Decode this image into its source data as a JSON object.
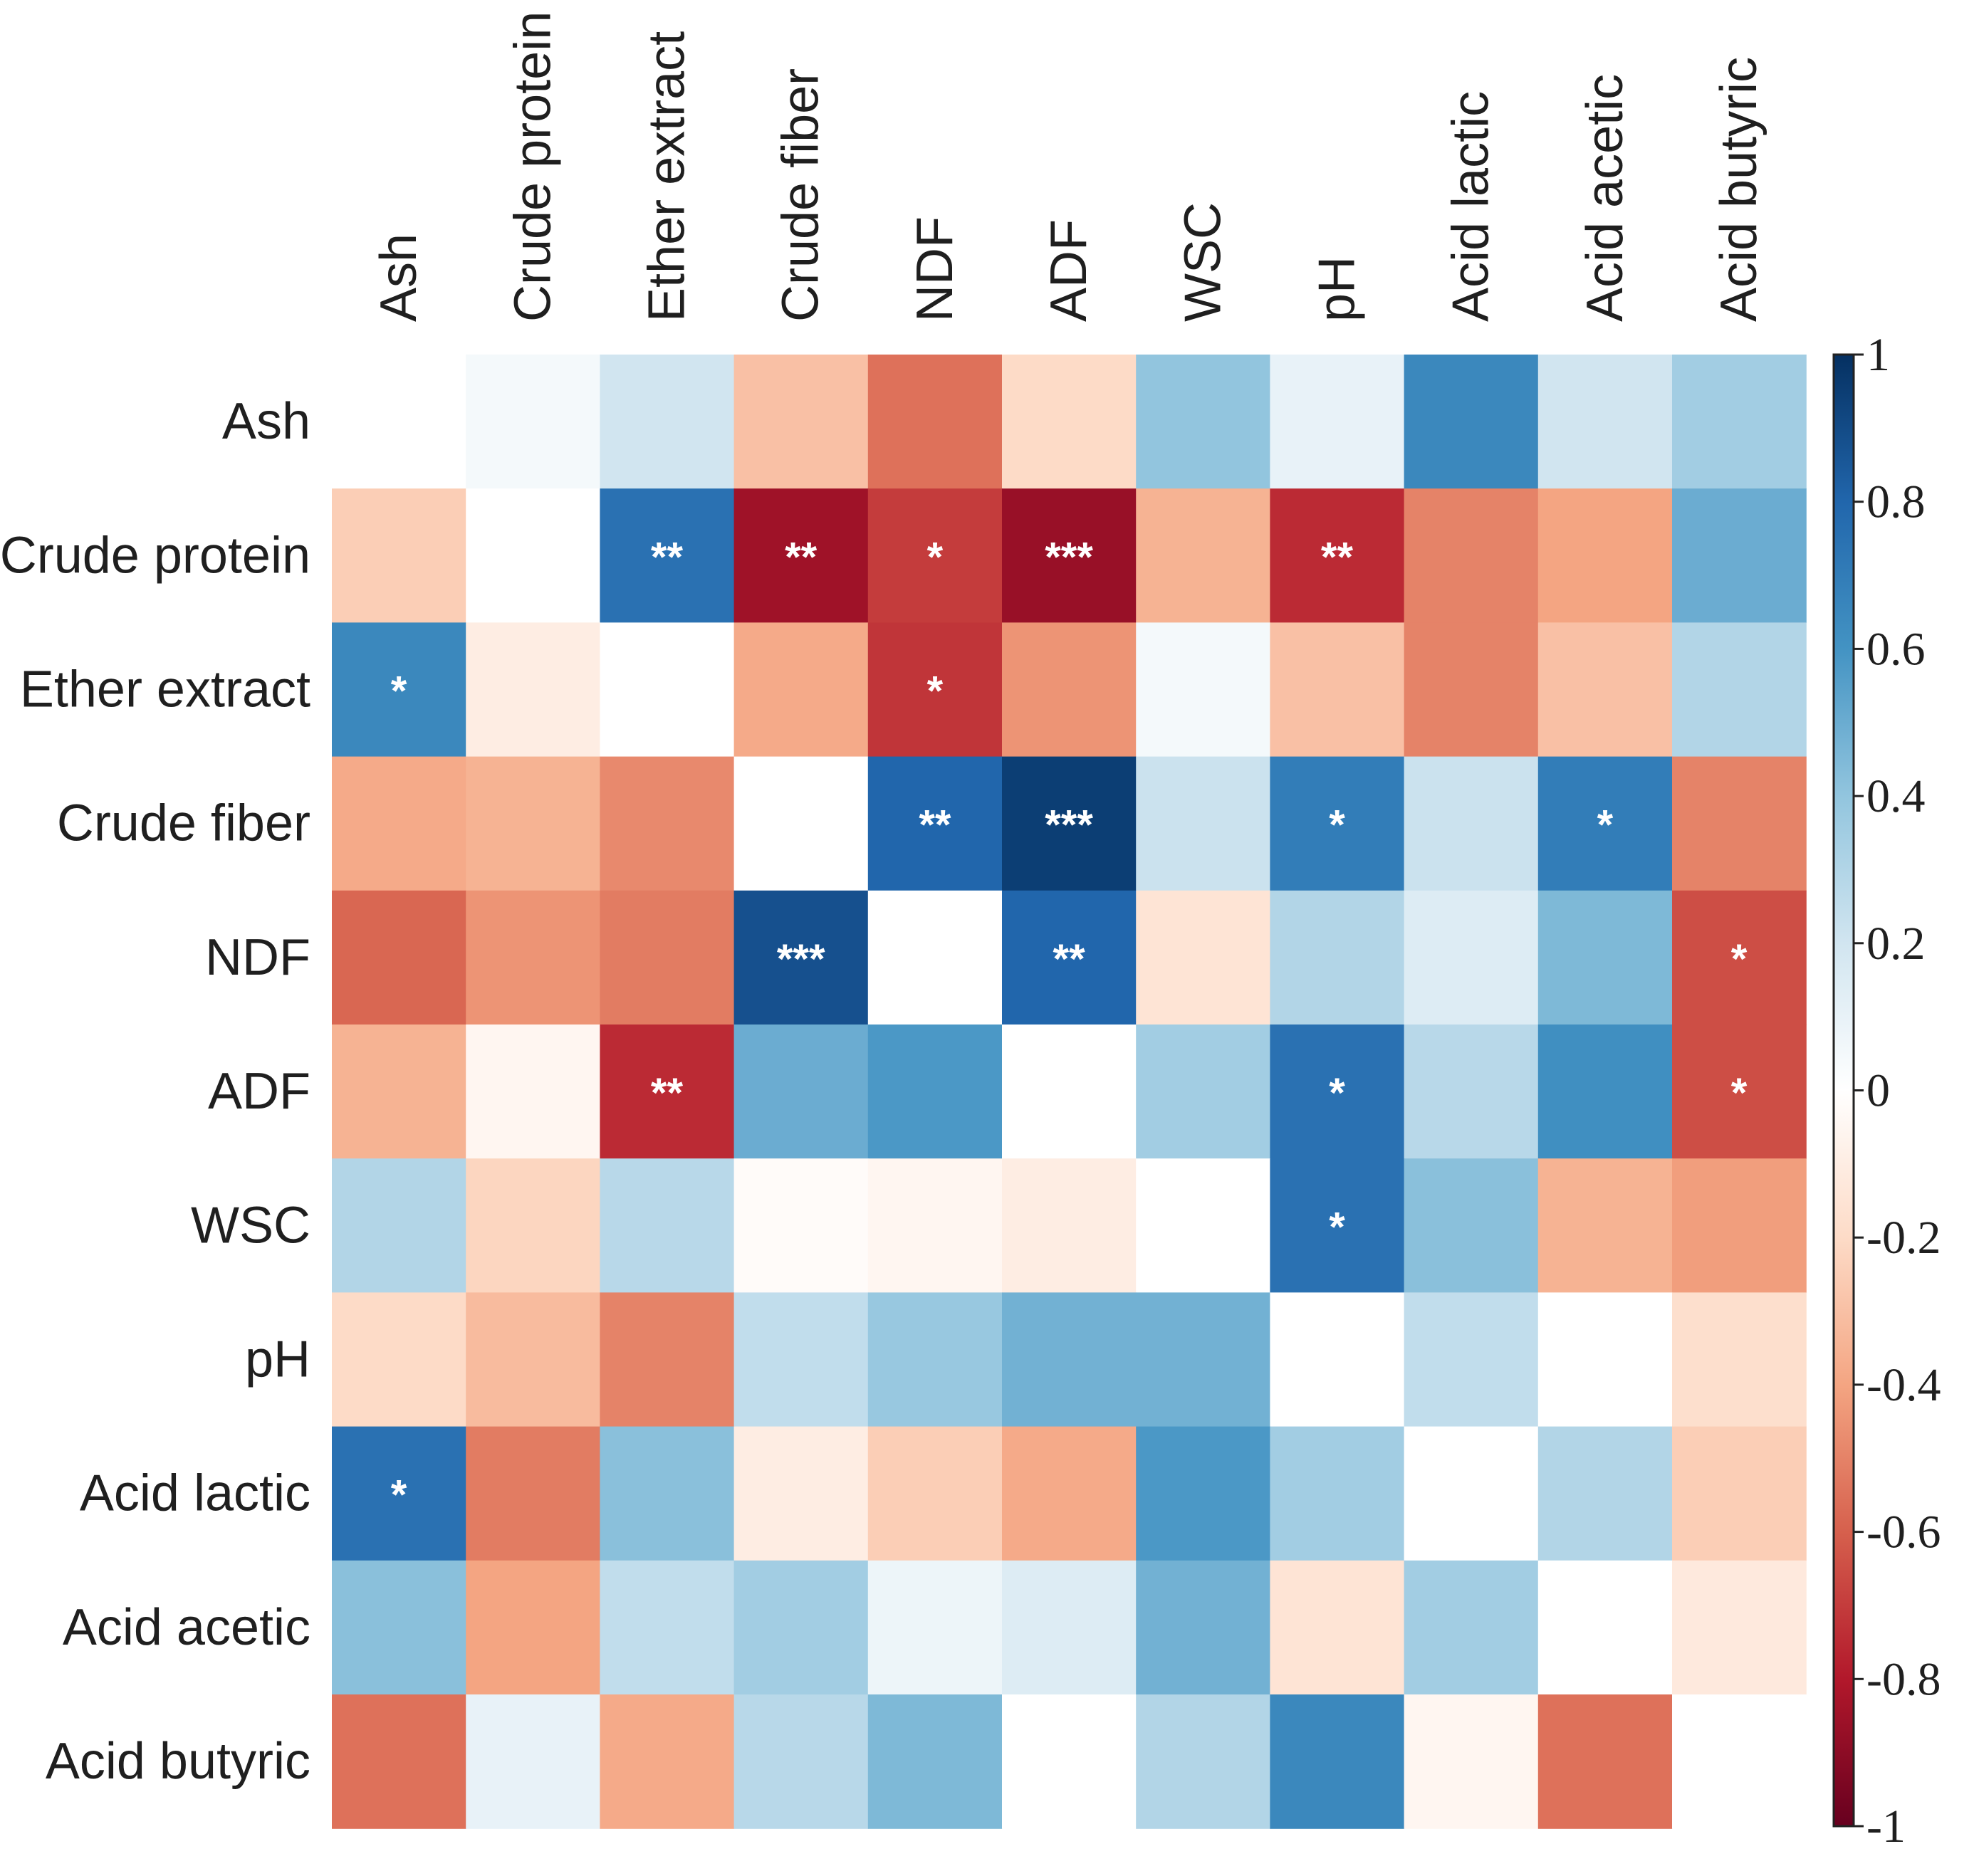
{
  "chart_data": {
    "type": "heatmap",
    "title": "",
    "variables": [
      "Ash",
      "Crude protein",
      "Ether extract",
      "Crude fiber",
      "NDF",
      "ADF",
      "WSC",
      "pH",
      "Acid lactic",
      "Acid acetic",
      "Acid butyric"
    ],
    "row_labels": [
      "Ash",
      "Crude protein",
      "Ether extract",
      "Crude fiber",
      "NDF",
      "ADF",
      "WSC",
      "pH",
      "Acid lactic",
      "Acid acetic",
      "Acid butyric"
    ],
    "col_labels": [
      "Ash",
      "Crude protein",
      "Ether extract",
      "Crude fiber",
      "NDF",
      "ADF",
      "WSC",
      "pH",
      "Acid lactic",
      "Acid acetic",
      "Acid butyric"
    ],
    "values": [
      [
        0,
        0.05,
        0.2,
        -0.3,
        -0.55,
        -0.2,
        0.4,
        0.1,
        0.65,
        0.2,
        0.35
      ],
      [
        -0.25,
        0,
        0.75,
        -0.85,
        -0.7,
        -0.87,
        -0.35,
        -0.75,
        -0.5,
        -0.4,
        0.5
      ],
      [
        0.65,
        -0.1,
        0,
        -0.38,
        -0.72,
        -0.45,
        0.05,
        -0.3,
        -0.5,
        -0.3,
        0.3
      ],
      [
        -0.38,
        -0.35,
        -0.48,
        0,
        0.8,
        0.95,
        0.22,
        0.7,
        0.22,
        0.7,
        -0.5
      ],
      [
        -0.58,
        -0.45,
        -0.52,
        0.88,
        0,
        0.8,
        -0.15,
        0.3,
        0.15,
        0.45,
        -0.65
      ],
      [
        -0.35,
        -0.05,
        -0.75,
        0.5,
        0.58,
        0,
        0.35,
        0.75,
        0.28,
        0.62,
        -0.65
      ],
      [
        0.3,
        -0.22,
        0.28,
        -0.02,
        -0.05,
        -0.1,
        0,
        0.75,
        0.42,
        -0.35,
        -0.42
      ],
      [
        -0.2,
        -0.32,
        -0.5,
        0.25,
        0.38,
        0.48,
        0.48,
        0,
        0.25,
        0.0,
        -0.18
      ],
      [
        0.75,
        -0.52,
        0.42,
        -0.1,
        -0.25,
        -0.38,
        0.58,
        0.35,
        0,
        0.3,
        -0.25
      ],
      [
        0.42,
        -0.4,
        0.25,
        0.35,
        0.08,
        0.15,
        0.48,
        -0.15,
        0.35,
        0,
        -0.12
      ],
      [
        -0.55,
        0.1,
        -0.38,
        0.28,
        0.45,
        0.0,
        0.3,
        0.65,
        -0.05,
        -0.55,
        0
      ]
    ],
    "significance": [
      [
        "",
        "",
        "",
        "",
        "",
        "",
        "",
        "",
        "",
        "",
        ""
      ],
      [
        "",
        "",
        "**",
        "**",
        "*",
        "***",
        "",
        "**",
        "",
        "",
        ""
      ],
      [
        "*",
        "",
        "",
        "",
        "*",
        "",
        "",
        "",
        "",
        "",
        ""
      ],
      [
        "",
        "",
        "",
        "",
        "**",
        "***",
        "",
        "*",
        "",
        "*",
        ""
      ],
      [
        "",
        "",
        "",
        "***",
        "",
        "**",
        "",
        "",
        "",
        "",
        "*"
      ],
      [
        "",
        "",
        "**",
        "",
        "",
        "",
        "",
        "*",
        "",
        "",
        "*"
      ],
      [
        "",
        "",
        "",
        "",
        "",
        "",
        "",
        "*",
        "",
        "",
        ""
      ],
      [
        "",
        "",
        "",
        "",
        "",
        "",
        "",
        "",
        "",
        "",
        ""
      ],
      [
        "*",
        "",
        "",
        "",
        "",
        "",
        "",
        "",
        "",
        "",
        ""
      ],
      [
        "",
        "",
        "",
        "",
        "",
        "",
        "",
        "",
        "",
        "",
        ""
      ],
      [
        "",
        "",
        "",
        "",
        "",
        "",
        "",
        "",
        "",
        "",
        ""
      ]
    ],
    "colorbar": {
      "range": [
        -1,
        1
      ],
      "ticks": [
        1,
        0.8,
        0.6,
        0.4,
        0.2,
        0,
        -0.2,
        -0.4,
        -0.6,
        -0.8,
        -1
      ],
      "tick_labels": [
        "1",
        "0.8",
        "0.6",
        "0.4",
        "0.2",
        "0",
        "-0.2",
        "-0.4",
        "-0.6",
        "-0.8",
        "-1"
      ],
      "colormap": "RdBu",
      "stops": [
        {
          "v": -1.0,
          "color": "#67001f"
        },
        {
          "v": -0.8,
          "color": "#b2182b"
        },
        {
          "v": -0.6,
          "color": "#d6604d"
        },
        {
          "v": -0.4,
          "color": "#f4a582"
        },
        {
          "v": -0.2,
          "color": "#fddbc7"
        },
        {
          "v": 0.0,
          "color": "#ffffff"
        },
        {
          "v": 0.2,
          "color": "#d1e5f0"
        },
        {
          "v": 0.4,
          "color": "#92c5de"
        },
        {
          "v": 0.6,
          "color": "#4393c3"
        },
        {
          "v": 0.8,
          "color": "#2166ac"
        },
        {
          "v": 1.0,
          "color": "#053061"
        }
      ]
    }
  }
}
